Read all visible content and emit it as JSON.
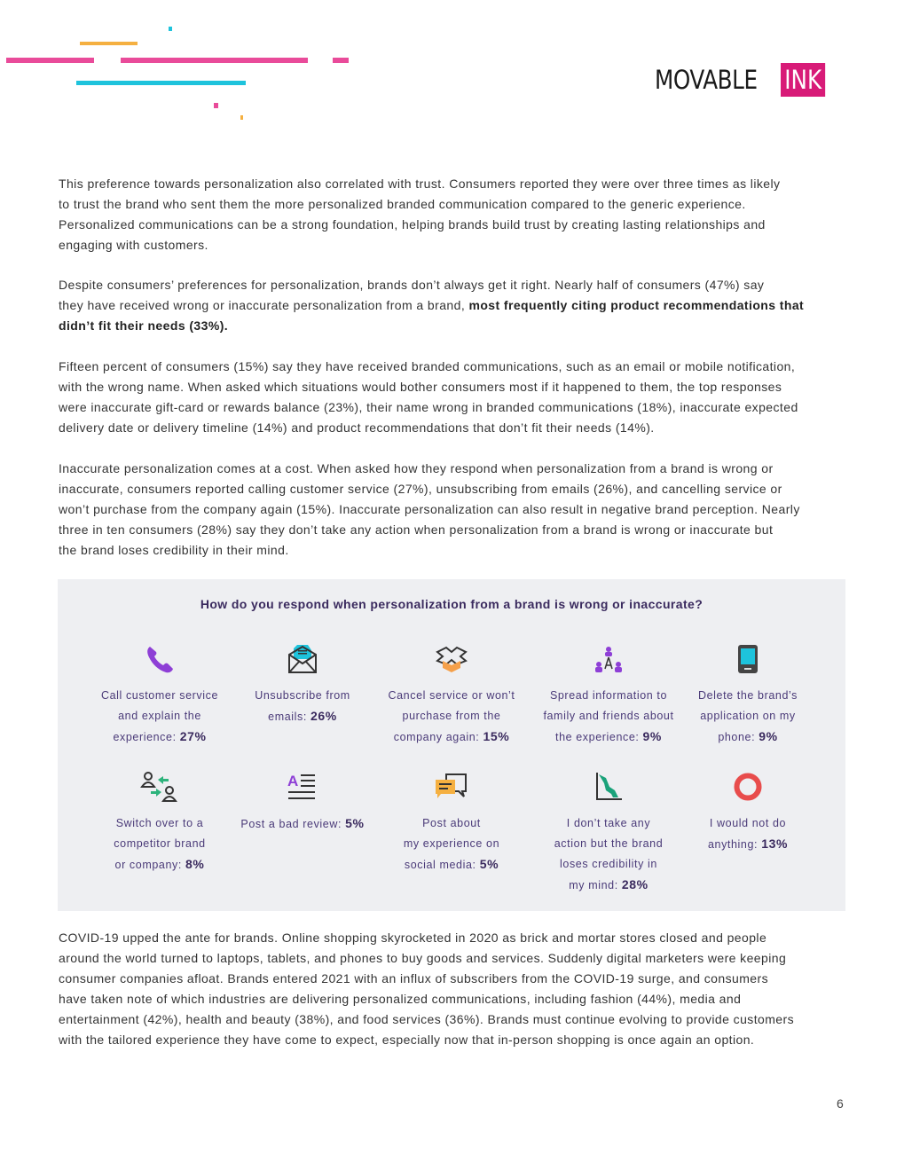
{
  "logo": {
    "text_main": "MOVABLE",
    "text_accent": "INK"
  },
  "colors": {
    "pink": "#e94b9a",
    "cyan": "#1ec3dc",
    "orange": "#f5b041",
    "purple_text": "#3a2a5e",
    "box_bg": "#eeeff2"
  },
  "paragraphs": [
    {
      "lines": [
        [
          {
            "t": "This preference towards personalization also correlated with trust. Consumers reported they were over three times as likely"
          }
        ],
        [
          {
            "t": "to trust the brand who sent them the more personalized branded communication compared to the generic experience."
          }
        ],
        [
          {
            "t": "Personalized communications can be a strong foundation, helping brands build trust by creating lasting relationships and"
          }
        ],
        [
          {
            "t": "engaging with customers."
          }
        ]
      ]
    },
    {
      "lines": [
        [
          {
            "t": "Despite consumers’ preferences for personalization, brands don’t always get it right. Nearly half of consumers (47%) say"
          }
        ],
        [
          {
            "t": "they have received wrong or inaccurate personalization from a brand, "
          },
          {
            "t": "most frequently citing product recommendations that",
            "b": true
          }
        ],
        [
          {
            "t": "didn’t fit their needs (33%).",
            "b": true
          }
        ]
      ]
    },
    {
      "lines": [
        [
          {
            "t": "Fifteen percent of consumers (15%) say they have received branded communications, such as an email or mobile notification,"
          }
        ],
        [
          {
            "t": "with the wrong name. When asked which situations would bother consumers most if it happened to them, the top responses"
          }
        ],
        [
          {
            "t": "were inaccurate gift-card or rewards balance (23%), their name wrong in branded communications (18%), inaccurate expected"
          }
        ],
        [
          {
            "t": "delivery date or delivery timeline (14%) and product recommendations that don’t fit their needs (14%)."
          }
        ]
      ]
    },
    {
      "lines": [
        [
          {
            "t": "Inaccurate personalization comes at a cost. When asked how they respond when personalization from a brand is wrong or"
          }
        ],
        [
          {
            "t": "inaccurate, consumers reported calling customer service (27%), unsubscribing from emails (26%), and cancelling service or"
          }
        ],
        [
          {
            "t": "won’t purchase from the company again (15%). Inaccurate personalization can also result in negative brand perception. Nearly"
          }
        ],
        [
          {
            "t": "three in ten consumers (28%) say they don’t take any action when personalization from a brand is wrong or inaccurate but"
          }
        ],
        [
          {
            "t": "the brand loses credibility in their mind."
          }
        ]
      ]
    },
    {
      "lines": [
        [
          {
            "t": "COVID-19 upped the ante for brands. Online shopping skyrocketed in 2020 as brick and mortar stores closed and people"
          }
        ],
        [
          {
            "t": "around the world turned to laptops, tablets, and phones to buy goods and services. Suddenly digital marketers were keeping"
          }
        ],
        [
          {
            "t": "consumer companies afloat. Brands entered 2021 with an influx of subscribers from the COVID-19 surge, and consumers"
          }
        ],
        [
          {
            "t": "have taken note of which industries are delivering personalized communications, including fashion (44%), media and"
          }
        ],
        [
          {
            "t": "entertainment (42%), health and beauty (38%), and food services (36%). Brands must continue evolving to provide customers"
          }
        ],
        [
          {
            "t": "with the tailored experience they have come to expect, especially now that in-person shopping is once again an option."
          }
        ]
      ]
    }
  ],
  "infographic": {
    "title": "How do you respond when personalization from a brand is wrong or inaccurate?",
    "items": [
      {
        "icon": "phone-icon",
        "lines": [
          "Call customer service",
          "and explain the",
          "experience: "
        ],
        "pct": "27%"
      },
      {
        "icon": "envelope-icon",
        "lines": [
          "Unsubscribe from",
          "emails: "
        ],
        "pct": "26%"
      },
      {
        "icon": "open-box-icon",
        "lines": [
          "Cancel service or won’t",
          "purchase from the",
          "company again: "
        ],
        "pct": "15%"
      },
      {
        "icon": "people-network-icon",
        "lines": [
          "Spread information to",
          "family and friends about",
          "the experience: "
        ],
        "pct": "9%"
      },
      {
        "icon": "smartphone-icon",
        "lines": [
          "Delete the brand’s",
          "application on my",
          "phone: "
        ],
        "pct": "9%"
      },
      {
        "icon": "switch-users-icon",
        "lines": [
          "Switch over to a",
          "competitor brand",
          "or company: "
        ],
        "pct": "8%"
      },
      {
        "icon": "text-review-icon",
        "lines": [
          "Post a bad review: "
        ],
        "pct": "5%"
      },
      {
        "icon": "chat-bubbles-icon",
        "lines": [
          "Post about",
          "my experience on",
          "social media: "
        ],
        "pct": "5%"
      },
      {
        "icon": "declining-chart-icon",
        "lines": [
          "I don’t take any",
          "action but the brand",
          "loses credibility in",
          "my mind: "
        ],
        "pct": "28%"
      },
      {
        "icon": "circle-icon",
        "lines": [
          "I would not do",
          "anything: "
        ],
        "pct": "13%"
      }
    ]
  },
  "page_number": "6"
}
